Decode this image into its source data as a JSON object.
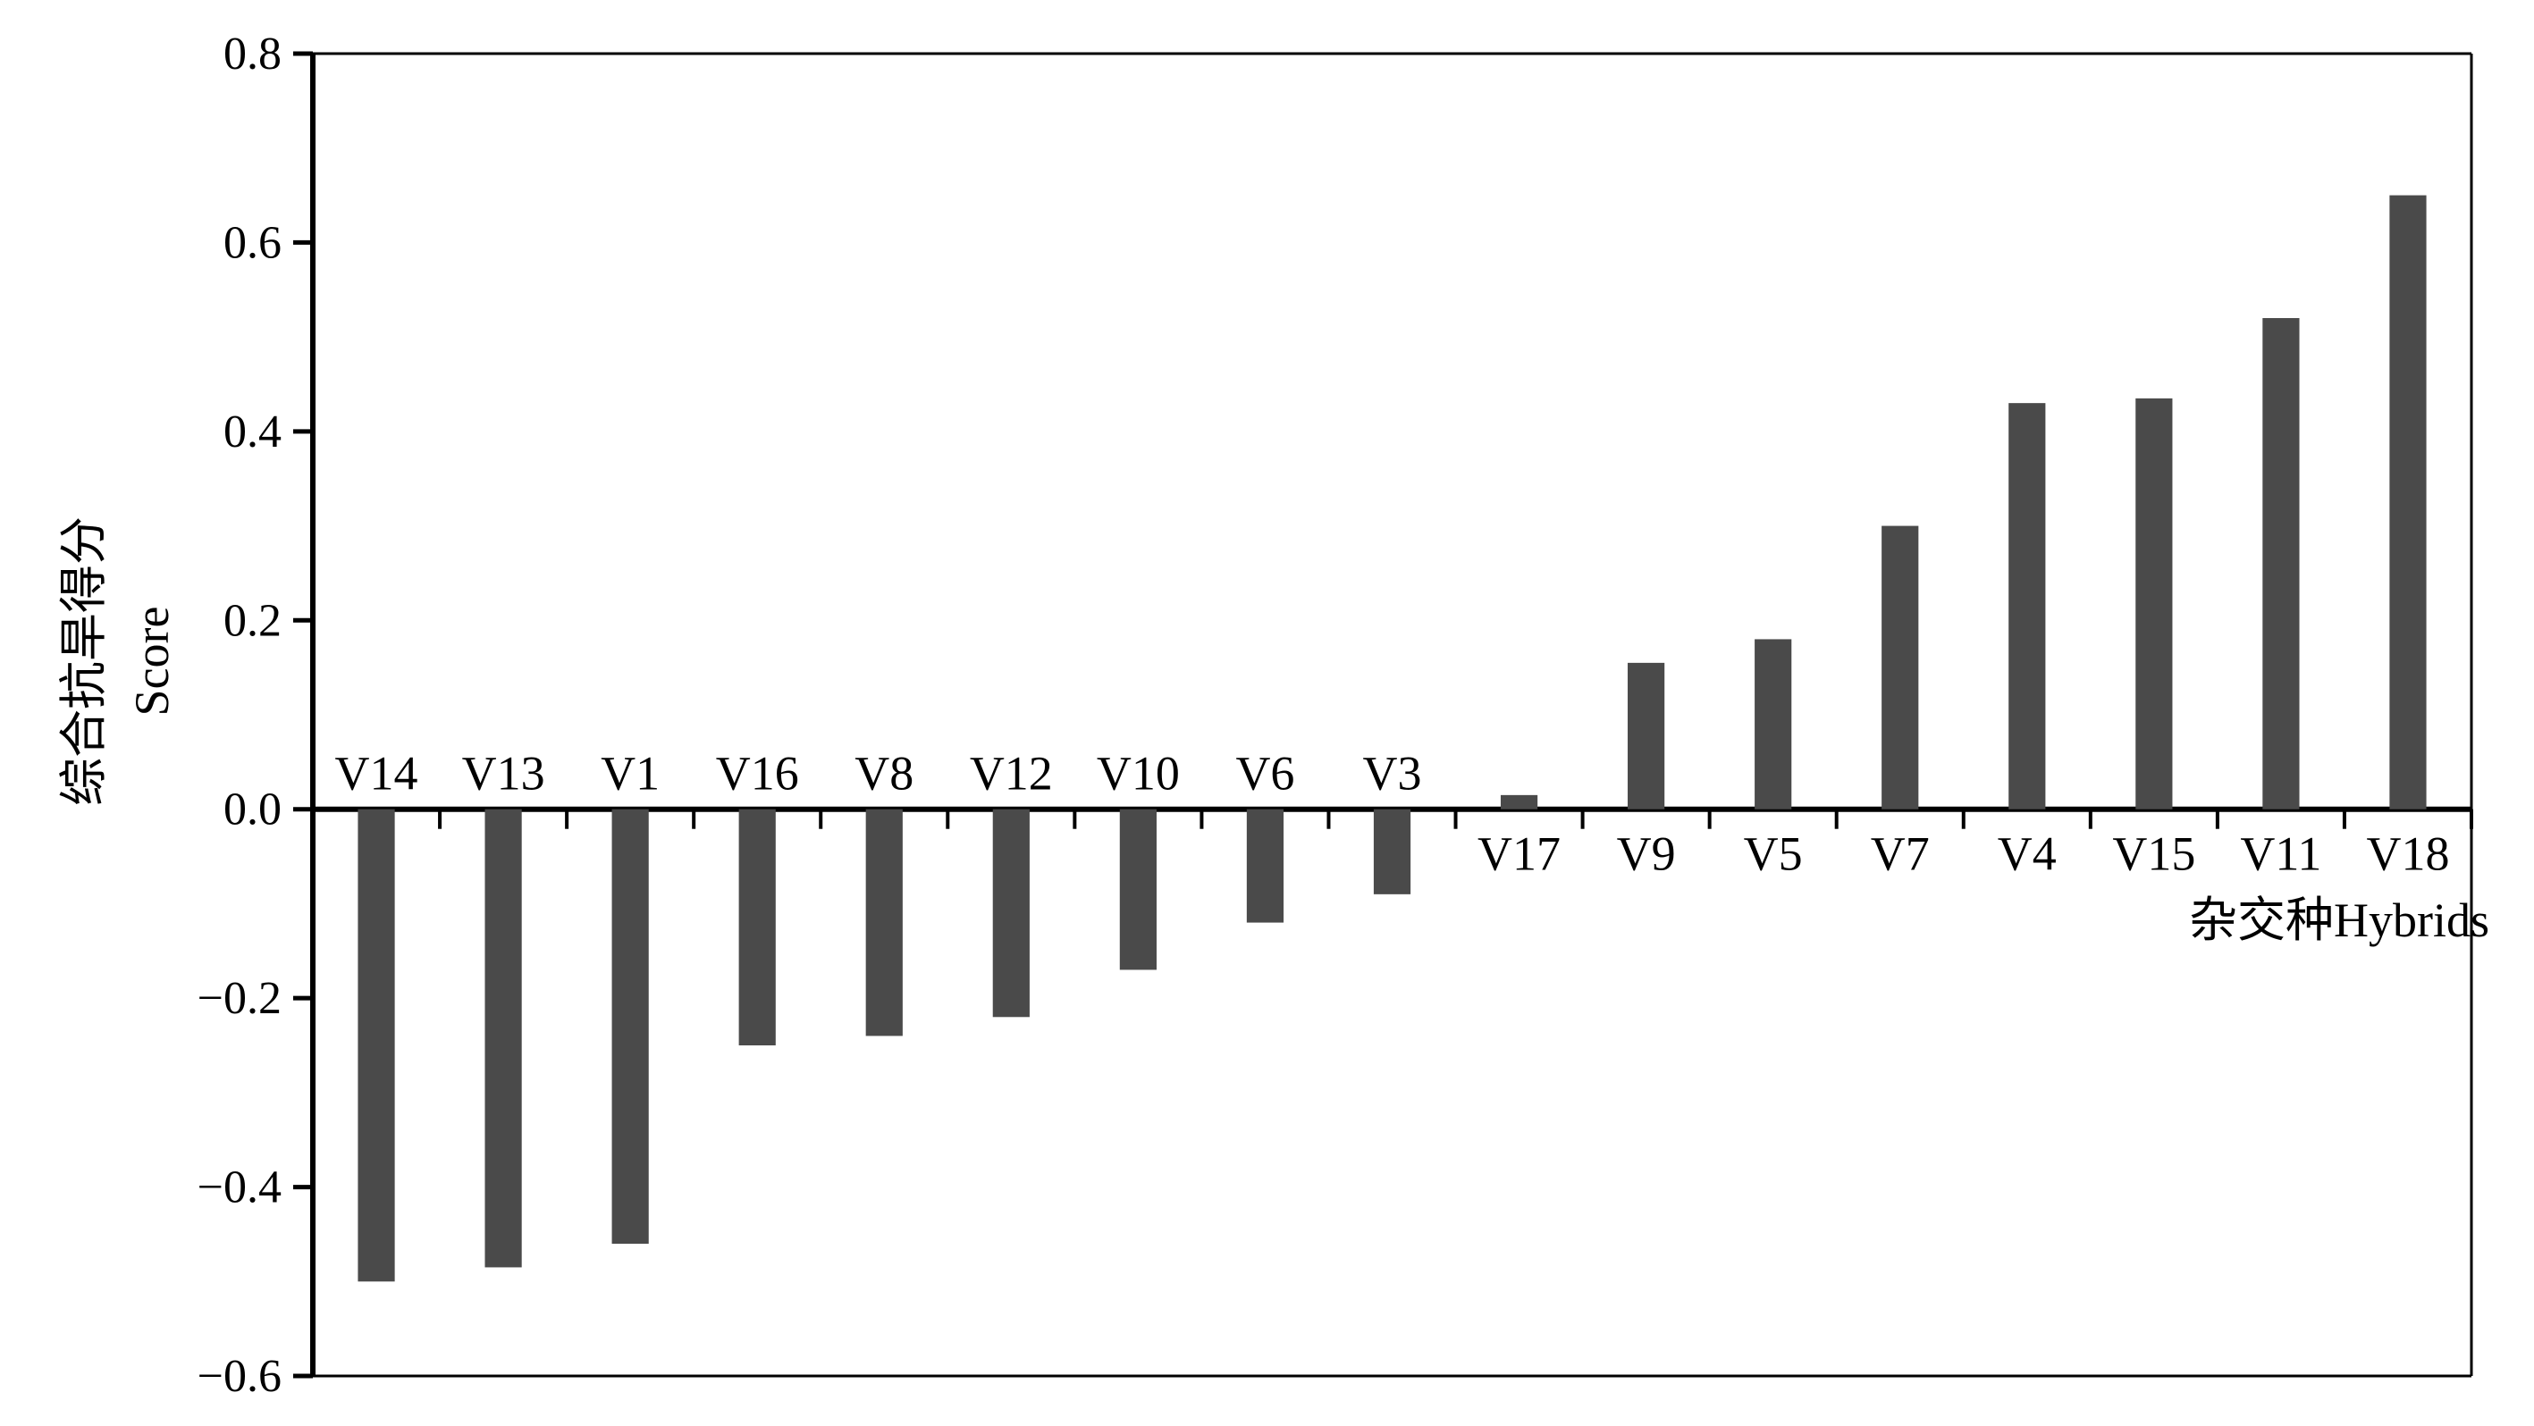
{
  "chart_data": {
    "type": "bar",
    "categories": [
      "V14",
      "V13",
      "V1",
      "V16",
      "V8",
      "V12",
      "V10",
      "V6",
      "V3",
      "V17",
      "V9",
      "V5",
      "V7",
      "V4",
      "V15",
      "V11",
      "V18"
    ],
    "values": [
      -0.5,
      -0.485,
      -0.46,
      -0.25,
      -0.24,
      -0.22,
      -0.17,
      -0.12,
      -0.09,
      0.015,
      0.155,
      0.18,
      0.3,
      0.43,
      0.435,
      0.52,
      0.65
    ],
    "title": "",
    "xlabel": "杂交种Hybrids",
    "ylabel_line1": "综合抗旱得分",
    "ylabel_line2": "Score",
    "ylim": [
      -0.6,
      0.8
    ],
    "yticks": [
      "0.8",
      "0.6",
      "0.4",
      "0.2",
      "0.0",
      "−0.2",
      "−0.4",
      "−0.6"
    ],
    "ytick_values": [
      0.8,
      0.6,
      0.4,
      0.2,
      0.0,
      -0.2,
      -0.4,
      -0.6
    ],
    "bar_color": "#4a4a4a",
    "grid": false,
    "legend": "none"
  }
}
